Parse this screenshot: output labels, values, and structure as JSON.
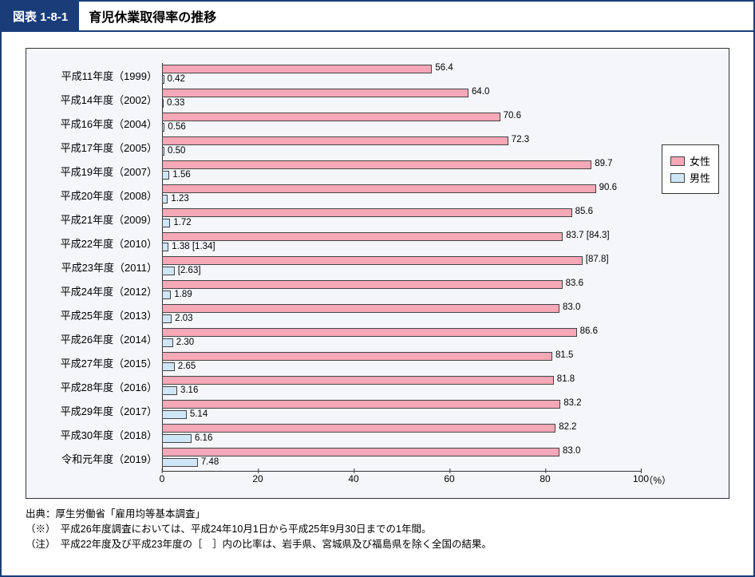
{
  "header": {
    "figure_number": "図表 1-8-1",
    "title": "育児休業取得率の推移"
  },
  "chart": {
    "type": "bar",
    "orientation": "horizontal",
    "background_color": "#f4f6fa",
    "border_color": "#333333",
    "xlim": [
      0,
      100
    ],
    "xtick_step": 20,
    "xticks": [
      "0",
      "20",
      "40",
      "60",
      "80",
      "100"
    ],
    "xunit": "（%）",
    "series": {
      "female": {
        "label": "女性",
        "color": "#f7a8b8"
      },
      "male": {
        "label": "男性",
        "color": "#cfe6f7"
      }
    },
    "bar_border_color": "#444444",
    "label_fontsize": 13,
    "value_fontsize": 11.5,
    "rows": [
      {
        "label": "平成11年度（1999）",
        "female": 56.4,
        "female_label": "56.4",
        "male": 0.42,
        "male_label": "0.42"
      },
      {
        "label": "平成14年度（2002）",
        "female": 64.0,
        "female_label": "64.0",
        "male": 0.33,
        "male_label": "0.33"
      },
      {
        "label": "平成16年度（2004）",
        "female": 70.6,
        "female_label": "70.6",
        "male": 0.56,
        "male_label": "0.56"
      },
      {
        "label": "平成17年度（2005）",
        "female": 72.3,
        "female_label": "72.3",
        "male": 0.5,
        "male_label": "0.50"
      },
      {
        "label": "平成19年度（2007）",
        "female": 89.7,
        "female_label": "89.7",
        "male": 1.56,
        "male_label": "1.56"
      },
      {
        "label": "平成20年度（2008）",
        "female": 90.6,
        "female_label": "90.6",
        "male": 1.23,
        "male_label": "1.23"
      },
      {
        "label": "平成21年度（2009）",
        "female": 85.6,
        "female_label": "85.6",
        "male": 1.72,
        "male_label": "1.72"
      },
      {
        "label": "平成22年度（2010）",
        "female": 83.7,
        "female_label": "83.7  [84.3]",
        "male": 1.38,
        "male_label": "1.38  [1.34]"
      },
      {
        "label": "平成23年度（2011）",
        "female": 87.8,
        "female_label": "[87.8]",
        "male": 2.63,
        "male_label": "[2.63]"
      },
      {
        "label": "平成24年度（2012）",
        "female": 83.6,
        "female_label": "83.6",
        "male": 1.89,
        "male_label": "1.89"
      },
      {
        "label": "平成25年度（2013）",
        "female": 83.0,
        "female_label": "83.0",
        "male": 2.03,
        "male_label": "2.03"
      },
      {
        "label": "平成26年度（2014）",
        "female": 86.6,
        "female_label": "86.6",
        "male": 2.3,
        "male_label": "2.30"
      },
      {
        "label": "平成27年度（2015）",
        "female": 81.5,
        "female_label": "81.5",
        "male": 2.65,
        "male_label": "2.65"
      },
      {
        "label": "平成28年度（2016）",
        "female": 81.8,
        "female_label": "81.8",
        "male": 3.16,
        "male_label": "3.16"
      },
      {
        "label": "平成29年度（2017）",
        "female": 83.2,
        "female_label": "83.2",
        "male": 5.14,
        "male_label": "5.14"
      },
      {
        "label": "平成30年度（2018）",
        "female": 82.2,
        "female_label": "82.2",
        "male": 6.16,
        "male_label": "6.16"
      },
      {
        "label": "令和元年度（2019）",
        "female": 83.0,
        "female_label": "83.0",
        "male": 7.48,
        "male_label": "7.48"
      }
    ]
  },
  "notes": {
    "line1": "出典：厚生労働省「雇用均等基本調査」",
    "line2": "（※）　平成26年度調査においては、平成24年10月1日から平成25年9月30日までの1年間。",
    "line3": "（注）　平成22年度及び平成23年度の［　］内の比率は、岩手県、宮城県及び福島県を除く全国の結果。"
  }
}
